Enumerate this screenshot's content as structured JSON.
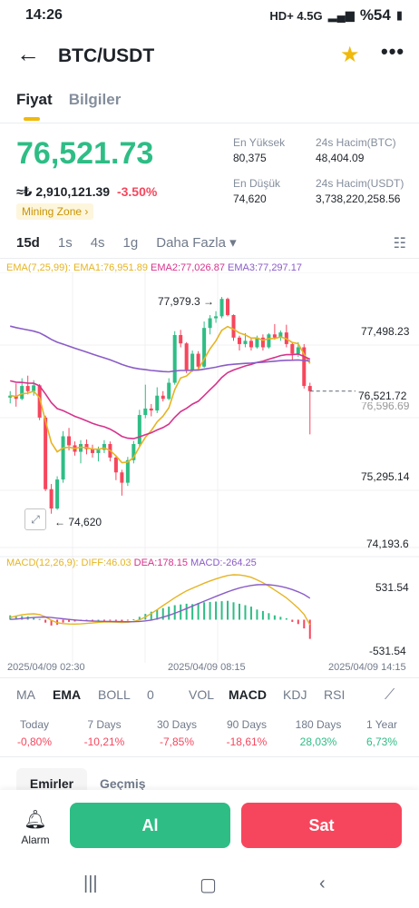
{
  "status": {
    "time": "14:26",
    "network": "HD+ 4.5G",
    "battery": "%54"
  },
  "header": {
    "title": "BTC/USDT"
  },
  "tabs": [
    "Fiyat",
    "Bilgiler"
  ],
  "price": {
    "last": "76,521.73",
    "fiat": "≈₺ 2,910,121.39",
    "change": "-3.50%",
    "tag": "Mining Zone ›"
  },
  "stats": {
    "high_label": "En Yüksek",
    "high_value": "80,375",
    "low_label": "En Düşük",
    "low_value": "74,620",
    "vol_btc_label": "24s Hacim(BTC)",
    "vol_btc_value": "48,404.09",
    "vol_usdt_label": "24s Hacim(USDT)",
    "vol_usdt_value": "3,738,220,258.56"
  },
  "intervals": [
    "15d",
    "1s",
    "4s",
    "1g",
    "Daha Fazla ▾"
  ],
  "ema_legend": {
    "params": "EMA(7,25,99):",
    "ema1": "EMA1:76,951.89",
    "ema2": "EMA2:77,026.87",
    "ema3": "EMA3:77,297.17"
  },
  "price_axis": [
    "77,498.23",
    "76,596.69",
    "75,295.14",
    "74,193.6"
  ],
  "price_tag": "76,521.72",
  "max_marker": "77,979.3 →",
  "min_marker": "← 74,620",
  "macd_legend": {
    "params": "MACD(12,26,9):",
    "diff": "DIFF:46.03",
    "dea": "DEA:178.15",
    "macd": "MACD:-264.25"
  },
  "macd_axis": [
    "531.54",
    "-531.54"
  ],
  "time_axis": [
    "2025/04/09 02:30",
    "2025/04/09 08:15",
    "2025/04/09 14:15"
  ],
  "indicators": [
    "MA",
    "EMA",
    "BOLL",
    "0",
    "VOL",
    "MACD",
    "KDJ",
    "RSI"
  ],
  "performance": [
    {
      "label": "Today",
      "value": "-0,80%"
    },
    {
      "label": "7 Days",
      "value": "-10,21%"
    },
    {
      "label": "30 Days",
      "value": "-7,85%"
    },
    {
      "label": "90 Days",
      "value": "-18,61%"
    },
    {
      "label": "180 Days",
      "value": "28,03%"
    },
    {
      "label": "1 Year",
      "value": "6,73%"
    }
  ],
  "order_tabs": [
    "Emirler",
    "Geçmiş"
  ],
  "actions": {
    "alarm": "Alarm",
    "buy": "Al",
    "sell": "Sat"
  },
  "colors": {
    "up": "#2ebd85",
    "down": "#f6465d",
    "accent": "#f0b90b",
    "ema1": "#e6b422",
    "ema2": "#d6338c",
    "ema3": "#8a5cc7"
  },
  "chart_data": {
    "type": "candlestick",
    "candles": [
      {
        "o": 76420,
        "h": 76520,
        "l": 76330,
        "c": 76450
      },
      {
        "o": 76450,
        "h": 76640,
        "l": 76280,
        "c": 76400
      },
      {
        "o": 76400,
        "h": 76720,
        "l": 76380,
        "c": 76600
      },
      {
        "o": 76600,
        "h": 76760,
        "l": 76470,
        "c": 76520
      },
      {
        "o": 76520,
        "h": 76690,
        "l": 76450,
        "c": 76610
      },
      {
        "o": 76610,
        "h": 76630,
        "l": 76070,
        "c": 76110
      },
      {
        "o": 76110,
        "h": 76140,
        "l": 74970,
        "c": 75000
      },
      {
        "o": 75000,
        "h": 75080,
        "l": 74620,
        "c": 74700
      },
      {
        "o": 74700,
        "h": 75200,
        "l": 74680,
        "c": 75150
      },
      {
        "o": 75150,
        "h": 75900,
        "l": 75100,
        "c": 75820
      },
      {
        "o": 75820,
        "h": 75950,
        "l": 75600,
        "c": 75680
      },
      {
        "o": 75680,
        "h": 75740,
        "l": 75520,
        "c": 75580
      },
      {
        "o": 75580,
        "h": 75760,
        "l": 75400,
        "c": 75700
      },
      {
        "o": 75700,
        "h": 75770,
        "l": 75540,
        "c": 75620
      },
      {
        "o": 75620,
        "h": 75690,
        "l": 75490,
        "c": 75560
      },
      {
        "o": 75560,
        "h": 75660,
        "l": 75430,
        "c": 75610
      },
      {
        "o": 75610,
        "h": 75760,
        "l": 75560,
        "c": 75700
      },
      {
        "o": 75700,
        "h": 75740,
        "l": 75430,
        "c": 75490
      },
      {
        "o": 75490,
        "h": 75510,
        "l": 75140,
        "c": 75260
      },
      {
        "o": 75260,
        "h": 75300,
        "l": 74900,
        "c": 75100
      },
      {
        "o": 75100,
        "h": 75500,
        "l": 75050,
        "c": 75450
      },
      {
        "o": 75450,
        "h": 75750,
        "l": 75400,
        "c": 75700
      },
      {
        "o": 75700,
        "h": 76230,
        "l": 75650,
        "c": 76150
      },
      {
        "o": 76150,
        "h": 76620,
        "l": 76100,
        "c": 76250
      },
      {
        "o": 76250,
        "h": 76320,
        "l": 76130,
        "c": 76220
      },
      {
        "o": 76220,
        "h": 76580,
        "l": 76180,
        "c": 76450
      },
      {
        "o": 76450,
        "h": 76520,
        "l": 76360,
        "c": 76400
      },
      {
        "o": 76400,
        "h": 76720,
        "l": 76380,
        "c": 76650
      },
      {
        "o": 76650,
        "h": 77450,
        "l": 76620,
        "c": 77390
      },
      {
        "o": 77390,
        "h": 77470,
        "l": 77200,
        "c": 77260
      },
      {
        "o": 77260,
        "h": 77280,
        "l": 76800,
        "c": 76850
      },
      {
        "o": 76850,
        "h": 77150,
        "l": 76820,
        "c": 77100
      },
      {
        "o": 77100,
        "h": 77140,
        "l": 76850,
        "c": 76900
      },
      {
        "o": 76900,
        "h": 77600,
        "l": 76880,
        "c": 77500
      },
      {
        "o": 77500,
        "h": 77700,
        "l": 77400,
        "c": 77650
      },
      {
        "o": 77650,
        "h": 77760,
        "l": 77580,
        "c": 77680
      },
      {
        "o": 77680,
        "h": 77980,
        "l": 77650,
        "c": 77950
      },
      {
        "o": 77950,
        "h": 77970,
        "l": 77680,
        "c": 77700
      },
      {
        "o": 77700,
        "h": 77710,
        "l": 77300,
        "c": 77350
      },
      {
        "o": 77350,
        "h": 77380,
        "l": 77150,
        "c": 77250
      },
      {
        "o": 77250,
        "h": 77420,
        "l": 77200,
        "c": 77300
      },
      {
        "o": 77300,
        "h": 77350,
        "l": 77150,
        "c": 77200
      },
      {
        "o": 77200,
        "h": 77380,
        "l": 77180,
        "c": 77350
      },
      {
        "o": 77350,
        "h": 77400,
        "l": 77150,
        "c": 77200
      },
      {
        "o": 77200,
        "h": 77420,
        "l": 77180,
        "c": 77400
      },
      {
        "o": 77400,
        "h": 77560,
        "l": 77320,
        "c": 77350
      },
      {
        "o": 77350,
        "h": 77460,
        "l": 77300,
        "c": 77430
      },
      {
        "o": 77430,
        "h": 77550,
        "l": 77200,
        "c": 77250
      },
      {
        "o": 77250,
        "h": 77280,
        "l": 77000,
        "c": 77100
      },
      {
        "o": 77100,
        "h": 77280,
        "l": 77050,
        "c": 77200
      },
      {
        "o": 77200,
        "h": 77250,
        "l": 76560,
        "c": 76600
      },
      {
        "o": 76600,
        "h": 76650,
        "l": 75850,
        "c": 76520
      }
    ],
    "ylim": [
      74193.6,
      78150
    ],
    "macd_hist": [
      60,
      55,
      50,
      45,
      35,
      10,
      -40,
      -80,
      -70,
      -40,
      -30,
      -25,
      -15,
      -10,
      -5,
      0,
      -5,
      -10,
      -15,
      -20,
      -10,
      5,
      40,
      80,
      110,
      140,
      160,
      180,
      200,
      210,
      220,
      215,
      230,
      240,
      245,
      250,
      255,
      260,
      240,
      220,
      200,
      180,
      140,
      120,
      90,
      60,
      40,
      20,
      -30,
      -60,
      -120,
      -264
    ],
    "macd_ylim": [
      -531.54,
      531.54
    ]
  }
}
